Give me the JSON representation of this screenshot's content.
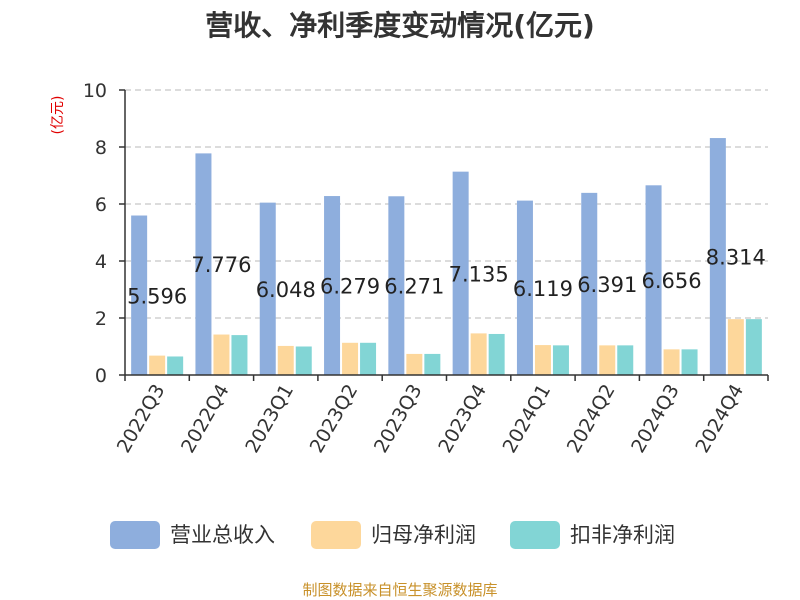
{
  "chart_data": {
    "type": "bar",
    "title": "营收、净利季度变动情况(亿元)",
    "unit_label": "(亿元)",
    "categories": [
      "2022Q3",
      "2022Q4",
      "2023Q1",
      "2023Q2",
      "2023Q3",
      "2023Q4",
      "2024Q1",
      "2024Q2",
      "2024Q3",
      "2024Q4"
    ],
    "series": [
      {
        "name": "营业总收入",
        "color": "#8eaedd",
        "values": [
          5.596,
          7.776,
          6.048,
          6.279,
          6.271,
          7.135,
          6.119,
          6.391,
          6.656,
          8.314
        ]
      },
      {
        "name": "归母净利润",
        "color": "#fdd79b",
        "values": [
          0.68,
          1.42,
          1.02,
          1.13,
          0.74,
          1.46,
          1.05,
          1.04,
          0.9,
          1.96
        ]
      },
      {
        "name": "扣非净利润",
        "color": "#82d5d5",
        "values": [
          0.65,
          1.4,
          1.0,
          1.13,
          0.74,
          1.44,
          1.04,
          1.04,
          0.9,
          1.96
        ]
      }
    ],
    "data_labels": [
      "5.596",
      "7.776",
      "6.048",
      "6.279",
      "6.271",
      "7.135",
      "6.119",
      "6.391",
      "6.656",
      "8.314"
    ],
    "yticks": [
      "0",
      "2",
      "4",
      "6",
      "8",
      "10"
    ],
    "ylim": [
      0,
      10
    ],
    "grid": "horizontal dashed",
    "legend_position": "bottom",
    "source": "制图数据来自恒生聚源数据库"
  }
}
